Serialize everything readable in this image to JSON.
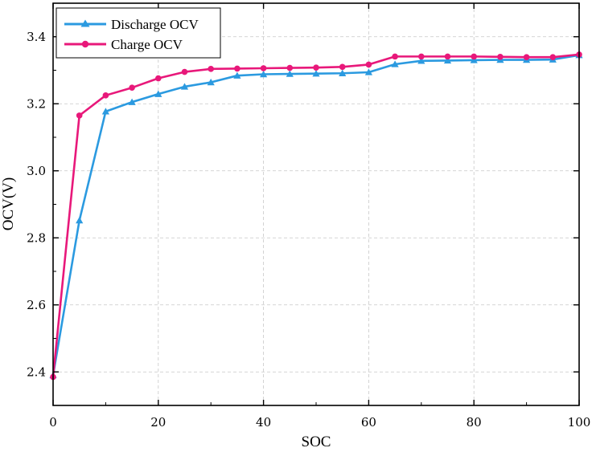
{
  "chart_data": {
    "type": "line",
    "title": "",
    "xlabel": "SOC",
    "ylabel": "OCV(V)",
    "xlim": [
      0,
      100
    ],
    "ylim": [
      2.3,
      3.5
    ],
    "xticks": [
      0,
      20,
      40,
      60,
      80,
      100
    ],
    "yticks": [
      2.4,
      2.6,
      2.8,
      3.0,
      3.2,
      3.4
    ],
    "xtick_labels": [
      "0",
      "20",
      "40",
      "60",
      "80",
      "100"
    ],
    "ytick_labels": [
      "2.4",
      "2.6",
      "2.8",
      "3.0",
      "3.2",
      "3.4"
    ],
    "grid": true,
    "legend_position": "top-left",
    "series": [
      {
        "name": "Discharge OCV",
        "color": "#2b9ae0",
        "marker": "triangle",
        "x": [
          0,
          5,
          10,
          15,
          20,
          25,
          30,
          35,
          40,
          45,
          50,
          55,
          60,
          65,
          70,
          75,
          80,
          85,
          90,
          95,
          100
        ],
        "values": [
          2.39,
          2.852,
          3.177,
          3.205,
          3.229,
          3.251,
          3.264,
          3.284,
          3.288,
          3.289,
          3.29,
          3.291,
          3.294,
          3.318,
          3.328,
          3.329,
          3.33,
          3.331,
          3.331,
          3.332,
          3.345
        ]
      },
      {
        "name": "Charge OCV",
        "color": "#e8187a",
        "marker": "circle",
        "x": [
          0,
          5,
          10,
          15,
          20,
          25,
          30,
          35,
          40,
          45,
          50,
          55,
          60,
          65,
          70,
          75,
          80,
          85,
          90,
          95,
          100
        ],
        "values": [
          2.385,
          3.165,
          3.225,
          3.248,
          3.276,
          3.295,
          3.304,
          3.305,
          3.306,
          3.307,
          3.308,
          3.31,
          3.317,
          3.341,
          3.341,
          3.341,
          3.341,
          3.34,
          3.339,
          3.339,
          3.347
        ]
      }
    ]
  }
}
